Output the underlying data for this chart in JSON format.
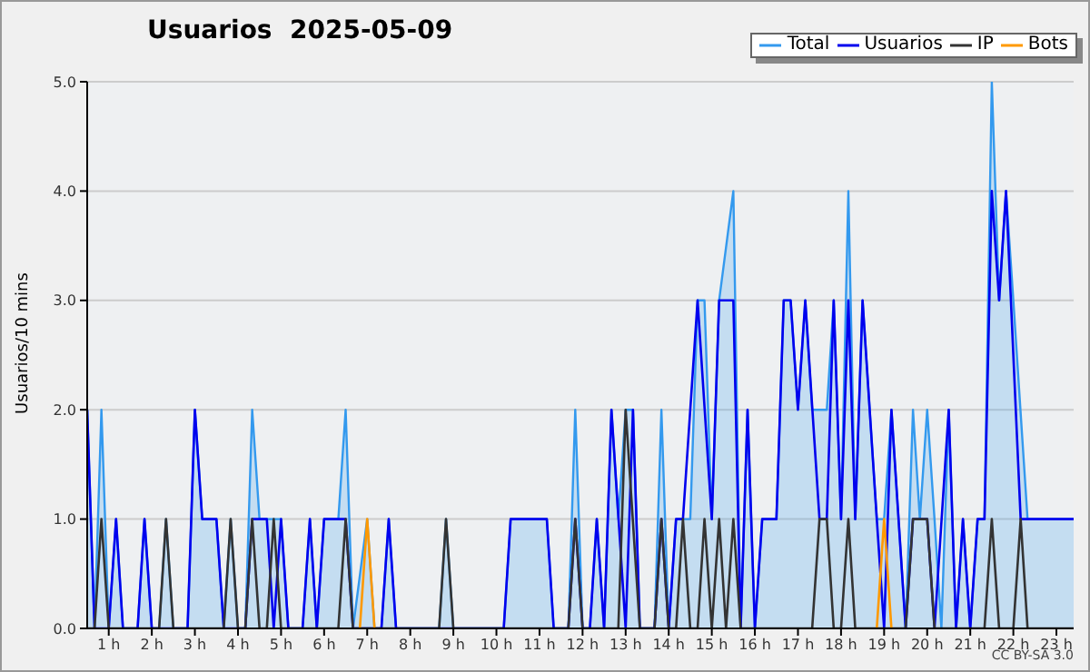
{
  "chart_data": {
    "type": "line",
    "title": "Usuarios  2025-05-09",
    "ylabel": "Usuarios/10 mins",
    "annotations": [
      "CC BY-SA 3.0"
    ],
    "xlim": [
      0.5,
      23.4
    ],
    "xticks": [
      {
        "value": 1,
        "label": "1 h"
      },
      {
        "value": 2,
        "label": "2 h"
      },
      {
        "value": 3,
        "label": "3 h"
      },
      {
        "value": 4,
        "label": "4 h"
      },
      {
        "value": 5,
        "label": "5 h"
      },
      {
        "value": 6,
        "label": "6 h"
      },
      {
        "value": 7,
        "label": "7 h"
      },
      {
        "value": 8,
        "label": "8 h"
      },
      {
        "value": 9,
        "label": "9 h"
      },
      {
        "value": 10,
        "label": "10 h"
      },
      {
        "value": 11,
        "label": "11 h"
      },
      {
        "value": 12,
        "label": "12 h"
      },
      {
        "value": 13,
        "label": "13 h"
      },
      {
        "value": 14,
        "label": "14 h"
      },
      {
        "value": 15,
        "label": "15 h"
      },
      {
        "value": 16,
        "label": "16 h"
      },
      {
        "value": 17,
        "label": "17 h"
      },
      {
        "value": 18,
        "label": "18 h"
      },
      {
        "value": 19,
        "label": "19 h"
      },
      {
        "value": 20,
        "label": "20 h"
      },
      {
        "value": 21,
        "label": "21 h"
      },
      {
        "value": 22,
        "label": "22 h"
      },
      {
        "value": 23,
        "label": "23 h"
      }
    ],
    "ylim": [
      0,
      5
    ],
    "yticks": [
      {
        "value": 0,
        "label": "0.0"
      },
      {
        "value": 1,
        "label": "1.0"
      },
      {
        "value": 2,
        "label": "2.0"
      },
      {
        "value": 3,
        "label": "3.0"
      },
      {
        "value": 4,
        "label": "4.0"
      },
      {
        "value": 5,
        "label": "5.0"
      }
    ],
    "grid": "y",
    "legend": "top right",
    "marker": "none",
    "line_style": "solid",
    "series": [
      {
        "name": "Total",
        "type": "area",
        "color": "#3399ee",
        "x": [
          0.5,
          0.67,
          0.83,
          1.0,
          1.17,
          1.33,
          1.67,
          1.83,
          2.0,
          2.17,
          2.33,
          2.5,
          2.83,
          3.0,
          3.17,
          3.5,
          3.67,
          3.83,
          4.0,
          4.17,
          4.33,
          4.5,
          4.83,
          5.0,
          5.17,
          5.5,
          5.67,
          5.83,
          6.0,
          6.33,
          6.5,
          6.67,
          7.0,
          7.17,
          7.33,
          7.5,
          7.67,
          8.67,
          8.83,
          9.0,
          10.17,
          10.33,
          11.17,
          11.33,
          11.67,
          11.83,
          12.0,
          12.17,
          12.33,
          12.5,
          12.67,
          12.83,
          13.0,
          13.17,
          13.33,
          13.67,
          13.83,
          14.0,
          14.17,
          14.5,
          14.67,
          14.83,
          15.0,
          15.17,
          15.5,
          15.67,
          15.83,
          16.0,
          16.17,
          16.5,
          16.67,
          16.83,
          17.0,
          17.17,
          17.33,
          17.67,
          17.83,
          18.0,
          18.17,
          18.33,
          18.5,
          18.83,
          19.0,
          19.17,
          19.5,
          19.67,
          19.83,
          20.0,
          20.17,
          20.33,
          20.5,
          20.67,
          20.83,
          21.0,
          21.17,
          21.33,
          21.5,
          21.67,
          21.83,
          22.0,
          22.33,
          23.4
        ],
        "values": [
          2,
          0,
          2,
          0,
          1,
          0,
          0,
          1,
          0,
          0,
          1,
          0,
          0,
          2,
          1,
          1,
          0,
          1,
          0,
          0,
          2,
          1,
          1,
          1,
          0,
          0,
          1,
          0,
          1,
          1,
          2,
          0,
          1,
          0,
          0,
          1,
          0,
          0,
          1,
          0,
          0,
          1,
          1,
          0,
          0,
          2,
          0,
          0,
          1,
          0,
          2,
          1,
          2,
          2,
          0,
          0,
          2,
          0,
          1,
          1,
          3,
          3,
          1,
          3,
          4,
          0,
          2,
          0,
          1,
          1,
          3,
          3,
          2,
          3,
          2,
          2,
          3,
          1,
          4,
          1,
          3,
          1,
          1,
          2,
          0,
          2,
          1,
          2,
          1,
          0,
          2,
          0,
          1,
          0,
          1,
          1,
          5,
          3,
          4,
          3,
          1,
          1
        ]
      },
      {
        "name": "Usuarios",
        "color": "#0000ee",
        "x": [
          0.5,
          0.67,
          1.0,
          1.17,
          1.33,
          1.67,
          1.83,
          2.0,
          2.83,
          3.0,
          3.17,
          3.5,
          3.67,
          4.17,
          4.33,
          4.67,
          4.83,
          5.0,
          5.17,
          5.5,
          5.67,
          5.83,
          6.0,
          6.5,
          6.67,
          7.33,
          7.5,
          7.67,
          10.17,
          10.33,
          11.17,
          11.33,
          11.67,
          11.83,
          12.0,
          12.17,
          12.33,
          12.5,
          12.67,
          13.0,
          13.17,
          13.33,
          13.67,
          13.83,
          14.0,
          14.17,
          14.33,
          14.67,
          15.0,
          15.17,
          15.5,
          15.67,
          15.83,
          16.0,
          16.17,
          16.5,
          16.67,
          16.83,
          17.0,
          17.17,
          17.5,
          17.67,
          17.83,
          18.0,
          18.17,
          18.33,
          18.5,
          18.83,
          19.0,
          19.17,
          19.5,
          19.67,
          20.0,
          20.17,
          20.5,
          20.67,
          20.83,
          21.0,
          21.17,
          21.33,
          21.5,
          21.67,
          21.83,
          22.17,
          23.4
        ],
        "values": [
          2,
          0,
          0,
          1,
          0,
          0,
          1,
          0,
          0,
          2,
          1,
          1,
          0,
          0,
          1,
          1,
          0,
          1,
          0,
          0,
          1,
          0,
          1,
          1,
          0,
          0,
          1,
          0,
          0,
          1,
          1,
          0,
          0,
          1,
          0,
          0,
          1,
          0,
          2,
          0,
          2,
          0,
          0,
          1,
          0,
          1,
          1,
          3,
          1,
          3,
          3,
          0,
          2,
          0,
          1,
          1,
          3,
          3,
          2,
          3,
          1,
          1,
          3,
          1,
          3,
          1,
          3,
          1,
          0,
          2,
          0,
          1,
          1,
          0,
          2,
          0,
          1,
          0,
          1,
          1,
          4,
          3,
          4,
          1,
          1
        ]
      },
      {
        "name": "IP",
        "color": "#333333",
        "x": [
          0.5,
          0.67,
          0.83,
          1.0,
          2.17,
          2.33,
          2.5,
          3.67,
          3.83,
          4.0,
          4.17,
          4.33,
          4.5,
          4.67,
          4.83,
          5.0,
          6.33,
          6.5,
          6.67,
          8.67,
          8.83,
          9.0,
          11.67,
          11.83,
          12.0,
          12.83,
          13.0,
          13.33,
          13.67,
          13.83,
          14.0,
          14.17,
          14.33,
          14.5,
          14.67,
          14.83,
          15.0,
          15.17,
          15.33,
          15.5,
          15.67,
          17.33,
          17.5,
          17.67,
          17.83,
          18.0,
          18.17,
          18.33,
          19.5,
          19.67,
          20.0,
          20.17,
          21.33,
          21.5,
          21.67,
          22.0,
          22.17,
          22.33,
          23.4
        ],
        "values": [
          0,
          0,
          1,
          0,
          0,
          1,
          0,
          0,
          1,
          0,
          0,
          1,
          0,
          0,
          1,
          0,
          0,
          1,
          0,
          0,
          1,
          0,
          0,
          1,
          0,
          0,
          2,
          0,
          0,
          1,
          0,
          0,
          1,
          0,
          0,
          1,
          0,
          1,
          0,
          1,
          0,
          0,
          1,
          1,
          0,
          0,
          1,
          0,
          0,
          1,
          1,
          0,
          0,
          1,
          0,
          0,
          1,
          0,
          0
        ]
      },
      {
        "name": "Bots",
        "color": "#ff9900",
        "x": [
          6.83,
          7.0,
          7.17,
          12.0,
          18.83,
          19.0,
          19.17
        ],
        "values": [
          0,
          1,
          0,
          null,
          0,
          1,
          0
        ]
      }
    ]
  }
}
